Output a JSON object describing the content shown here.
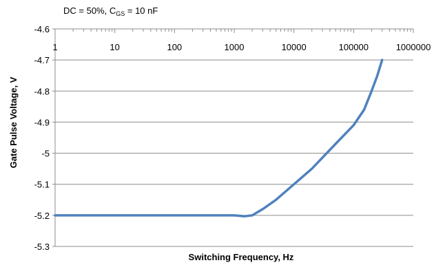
{
  "chart_data": {
    "type": "line",
    "annotation": {
      "prefix": "DC = 50%, C",
      "subscript": "GS",
      "suffix": " = 10 nF"
    },
    "xlabel": "Switching Frequency, Hz",
    "ylabel": "Gate Pulse Voltage, V",
    "x_scale": "log",
    "xlim": [
      1,
      1000000
    ],
    "ylim": [
      -5.3,
      -4.6
    ],
    "x_ticks": [
      "1",
      "10",
      "100",
      "1000",
      "10000",
      "100000",
      "1000000"
    ],
    "y_ticks": [
      "-4.6",
      "-4.7",
      "-4.8",
      "-4.9",
      "-5",
      "-5.1",
      "-5.2",
      "-5.3"
    ],
    "x_axis_position": "top",
    "grid": "horizontal",
    "line_color": "#4f81bd",
    "series": [
      {
        "x": [
          1,
          10,
          100,
          1000,
          1500,
          2000,
          3000,
          5000,
          10000,
          20000,
          50000,
          100000,
          150000,
          200000,
          250000,
          300000
        ],
        "y": [
          -5.2,
          -5.2,
          -5.2,
          -5.2,
          -5.203,
          -5.2,
          -5.18,
          -5.15,
          -5.1,
          -5.05,
          -4.97,
          -4.91,
          -4.86,
          -4.8,
          -4.75,
          -4.7
        ]
      }
    ]
  }
}
